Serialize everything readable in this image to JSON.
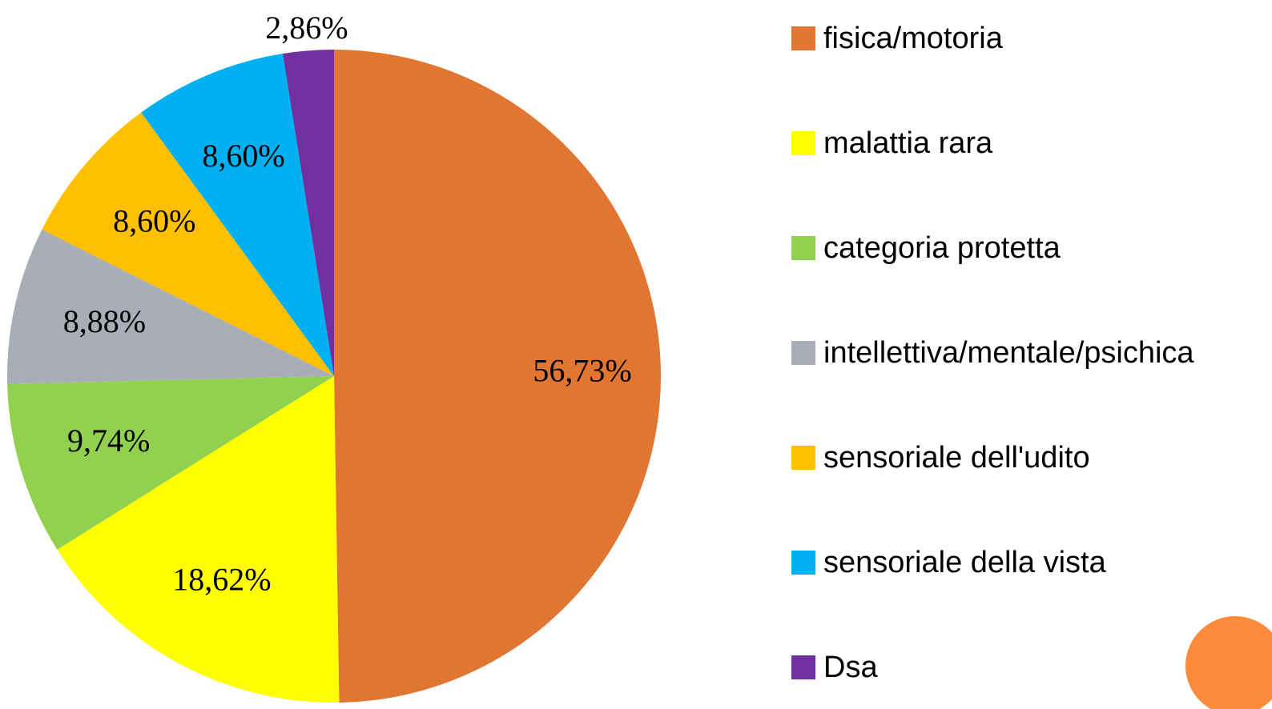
{
  "chart_data": {
    "type": "pie",
    "categories": [
      "fisica/motoria",
      "malattia rara",
      "categoria protetta",
      "intellettiva/mentale/psichica",
      "sensoriale dell'udito",
      "sensoriale della vista",
      "Dsa"
    ],
    "values": [
      56.73,
      18.62,
      9.74,
      8.88,
      8.6,
      8.6,
      2.86
    ],
    "value_labels": [
      "56,73%",
      "18,62%",
      "9,74%",
      "8,88%",
      "8,60%",
      "8,60%",
      "2,86%"
    ],
    "colors": [
      "#e07632",
      "#ffff00",
      "#92d050",
      "#a9adb8",
      "#ffc000",
      "#00b0f0",
      "#7030a0"
    ],
    "legend": "right"
  }
}
